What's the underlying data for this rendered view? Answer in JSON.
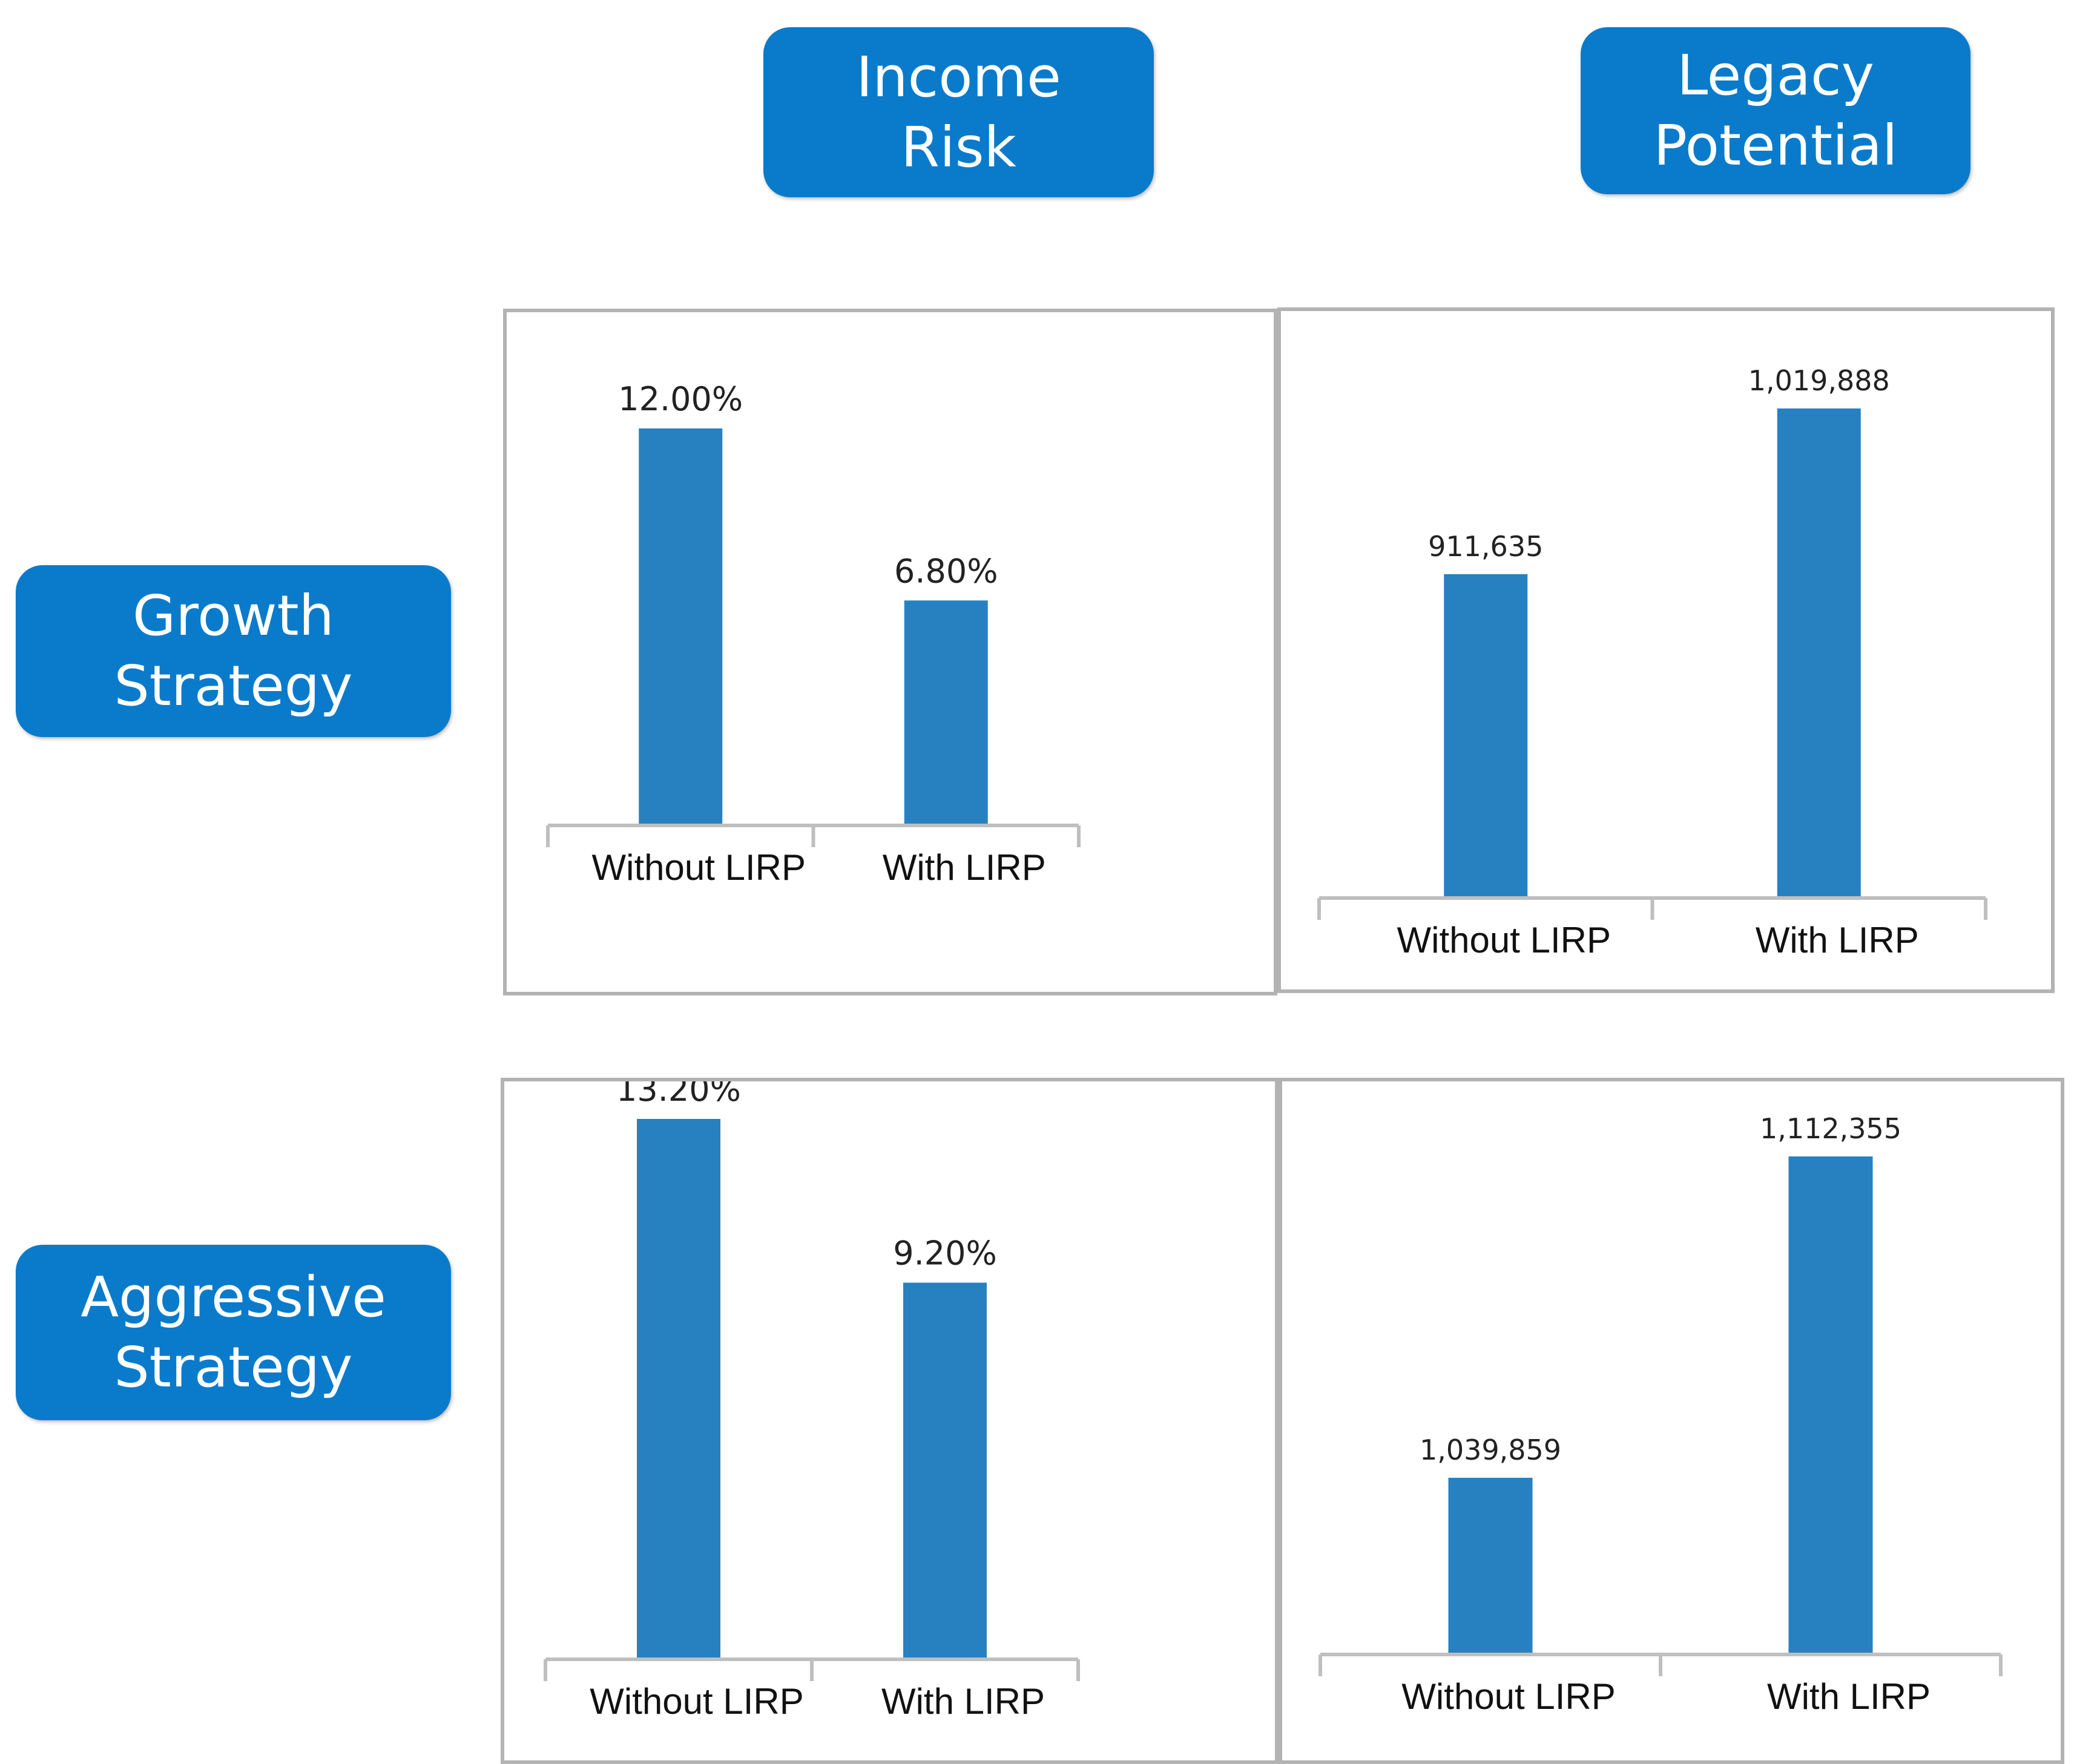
{
  "headers": {
    "columns": [
      {
        "line1": "Income",
        "line2": "Risk"
      },
      {
        "line1": "Legacy",
        "line2": "Potential"
      }
    ],
    "rows": [
      {
        "line1": "Growth",
        "line2": "Strategy"
      },
      {
        "line1": "Aggressive",
        "line2": "Strategy"
      }
    ]
  },
  "colors": {
    "bar": "#2781c1",
    "header_bg": "#0a7bcb",
    "header_text": "#ffffff"
  },
  "chart_data": [
    {
      "type": "bar",
      "title": "Growth Strategy - Income Risk",
      "categories": [
        "Without LIRP",
        "With LIRP"
      ],
      "values": [
        12.0,
        6.8
      ],
      "labels": [
        "12.00%",
        "6.80%"
      ],
      "ylim": [
        0,
        12.0
      ],
      "grid": false
    },
    {
      "type": "bar",
      "title": "Growth Strategy - Legacy Potential",
      "categories": [
        "Without LIRP",
        "With LIRP"
      ],
      "values": [
        911635,
        1019888
      ],
      "labels": [
        "911,635",
        "1,019,888"
      ],
      "ylim": [
        700000,
        1019888
      ],
      "grid": false
    },
    {
      "type": "bar",
      "title": "Aggressive Strategy - Income Risk",
      "categories": [
        "Without LIRP",
        "With LIRP"
      ],
      "values": [
        13.2,
        9.2
      ],
      "labels": [
        "13.20%",
        "9.20%"
      ],
      "ylim": [
        0,
        13.2
      ],
      "grid": false
    },
    {
      "type": "bar",
      "title": "Aggressive Strategy - Legacy Potential",
      "categories": [
        "Without LIRP",
        "With LIRP"
      ],
      "values": [
        1039859,
        1112355
      ],
      "labels": [
        "1,039,859",
        "1,112,355"
      ],
      "ylim": [
        1000000,
        1112355
      ],
      "grid": false
    }
  ]
}
